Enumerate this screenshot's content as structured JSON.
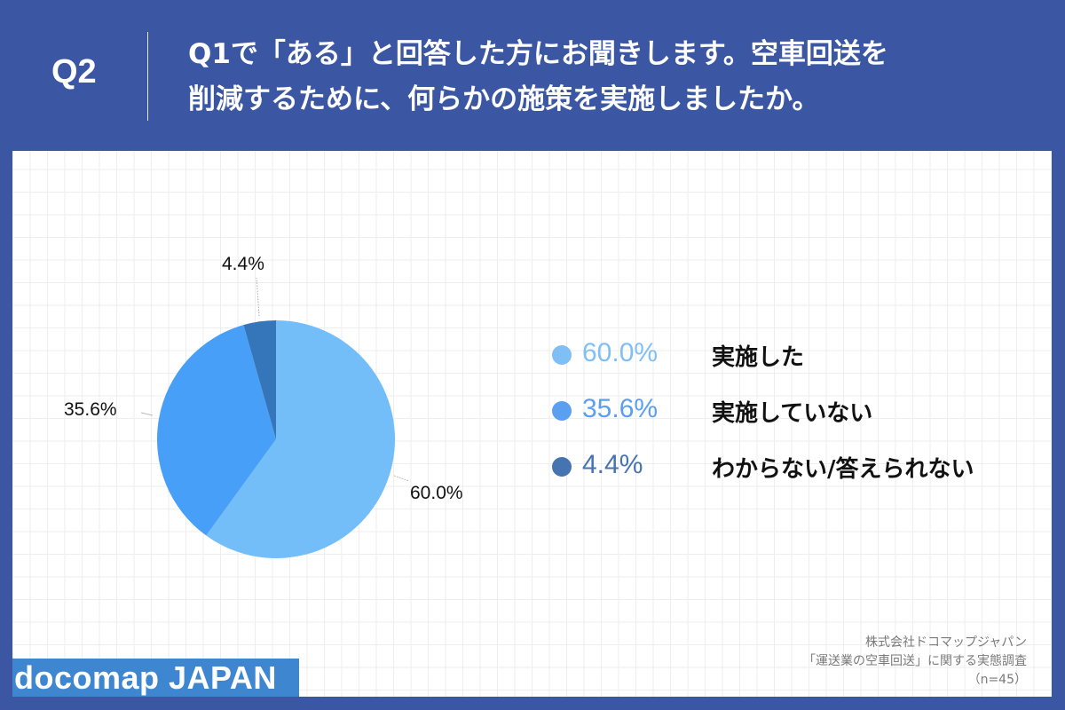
{
  "header": {
    "question_number": "Q2",
    "question_line1": "Q1で「ある」と回答した方にお聞きします。空車回送を",
    "question_line2": "削減するために、何らかの施策を実施しましたか。"
  },
  "colors": {
    "background": "#3b57a3",
    "slice_did": "#73bdf8",
    "slice_did_not": "#489ff7",
    "slice_unknown": "#3575b9",
    "legend_did": "#80bff5",
    "legend_did_not": "#5a9ff0",
    "legend_unknown": "#4574b0",
    "logo_bg": "#3f86d0"
  },
  "pie_labels": {
    "did": "60.0%",
    "did_not": "35.6%",
    "unknown": "4.4%"
  },
  "legend": [
    {
      "pct": "60.0%",
      "label": "実施した"
    },
    {
      "pct": "35.6%",
      "label": "実施していない"
    },
    {
      "pct": "4.4%",
      "label": "わからない/答えられない"
    }
  ],
  "credit": {
    "line1": "株式会社ドコマップジャパン",
    "line2": "「運送業の空車回送」に関する実態調査",
    "line3": "（n=45）"
  },
  "logo": {
    "text": "docomap JAPAN"
  },
  "chart_data": {
    "type": "pie",
    "title": "Q1で「ある」と回答した方にお聞きします。空車回送を削減するために、何らかの施策を実施しましたか。",
    "categories": [
      "実施した",
      "実施していない",
      "わからない/答えられない"
    ],
    "values": [
      60.0,
      35.6,
      4.4
    ],
    "unit": "%",
    "n": 45,
    "start_angle": "12 o'clock, clockwise",
    "legend_position": "right",
    "colors": [
      "#73bdf8",
      "#489ff7",
      "#3575b9"
    ]
  }
}
